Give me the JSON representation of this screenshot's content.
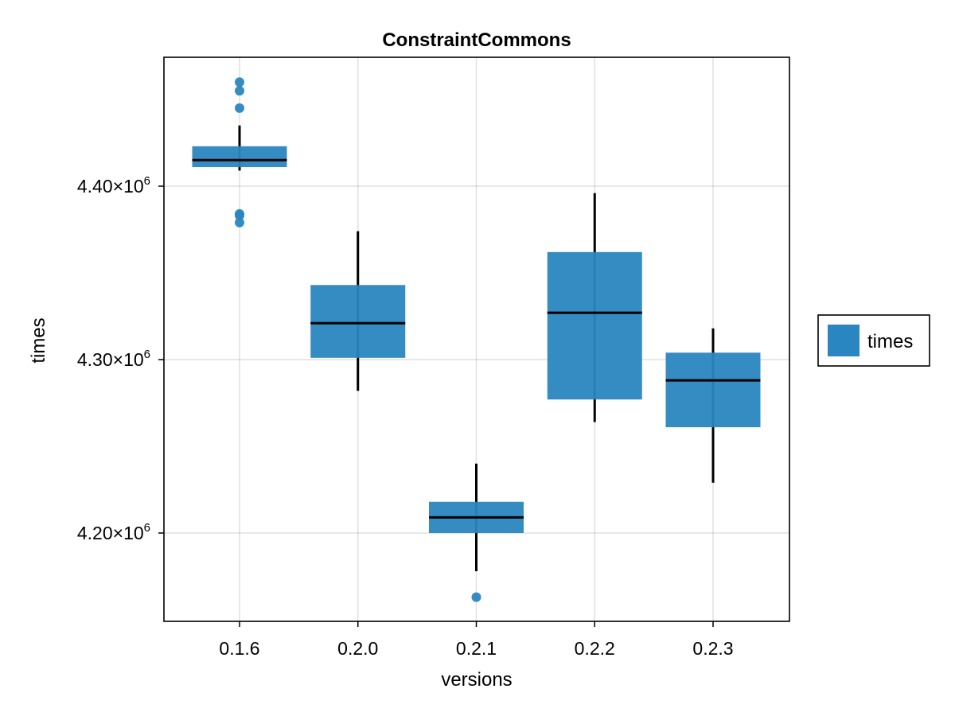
{
  "chart_data": {
    "type": "boxplot",
    "title": "ConstraintCommons",
    "xlabel": "versions",
    "ylabel": "times",
    "categories": [
      "0.1.6",
      "0.2.0",
      "0.2.1",
      "0.2.2",
      "0.2.3"
    ],
    "ylim": [
      4150000,
      4475000
    ],
    "y_ticks": [
      4200000,
      4300000,
      4400000
    ],
    "y_tick_labels": [
      {
        "base": "4.20×10",
        "exp": "6"
      },
      {
        "base": "4.30×10",
        "exp": "6"
      },
      {
        "base": "4.40×10",
        "exp": "6"
      }
    ],
    "grid": true,
    "legend": {
      "position": "right",
      "entries": [
        "times"
      ]
    },
    "box_color": "#2a86c0",
    "series": [
      {
        "name": "times",
        "boxes": [
          {
            "category": "0.1.6",
            "whisker_low": 4409000,
            "q1": 4411000,
            "median": 4415000,
            "q3": 4423000,
            "whisker_high": 4435000,
            "outliers": [
              4460000,
              4455000,
              4445000,
              4384000,
              4383000,
              4379000
            ]
          },
          {
            "category": "0.2.0",
            "whisker_low": 4282000,
            "q1": 4301000,
            "median": 4321000,
            "q3": 4343000,
            "whisker_high": 4374000,
            "outliers": []
          },
          {
            "category": "0.2.1",
            "whisker_low": 4178000,
            "q1": 4200000,
            "median": 4209000,
            "q3": 4218000,
            "whisker_high": 4240000,
            "outliers": [
              4163000
            ]
          },
          {
            "category": "0.2.2",
            "whisker_low": 4264000,
            "q1": 4277000,
            "median": 4327000,
            "q3": 4362000,
            "whisker_high": 4396000,
            "outliers": []
          },
          {
            "category": "0.2.3",
            "whisker_low": 4229000,
            "q1": 4261000,
            "median": 4288000,
            "q3": 4304000,
            "whisker_high": 4318000,
            "outliers": []
          }
        ]
      }
    ]
  }
}
